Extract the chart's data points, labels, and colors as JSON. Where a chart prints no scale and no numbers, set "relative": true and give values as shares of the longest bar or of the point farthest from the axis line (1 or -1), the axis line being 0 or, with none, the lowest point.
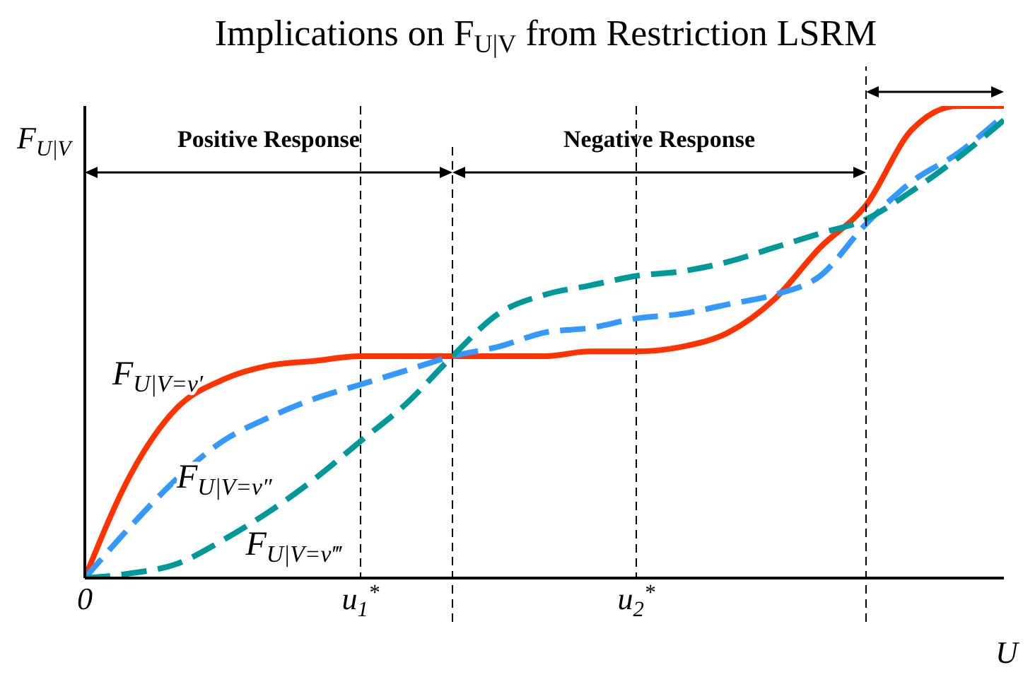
{
  "chart_data": {
    "type": "line",
    "title": "Implications on F$_{U|V}$ from Restriction LSRM",
    "xlabel": "U",
    "ylabel": "F$_{U|V}$",
    "relative": true,
    "categories": [
      "0",
      null,
      null,
      null,
      null,
      null,
      "u$_{1}$$^{*}$",
      null,
      null,
      null,
      null,
      null,
      "u$_{2}$$^{*}$",
      null,
      null,
      null,
      null,
      null,
      null,
      null,
      null
    ],
    "series": [
      {
        "name": "F$_{U|V=v′}$",
        "color": "#ff3300",
        "line_style": "solid",
        "values": [
          0,
          0.22,
          0.36,
          0.42,
          0.45,
          0.46,
          0.47,
          0.47,
          0.47,
          0.47,
          0.47,
          0.48,
          0.48,
          0.49,
          0.52,
          0.59,
          0.7,
          0.79,
          0.95,
          1,
          1
        ]
      },
      {
        "name": "F$_{U|V=v″}$",
        "color": "#3399ff",
        "line_style": "dashed",
        "values": [
          0,
          0.11,
          0.21,
          0.29,
          0.34,
          0.38,
          0.41,
          0.44,
          0.47,
          0.49,
          0.52,
          0.53,
          0.55,
          0.56,
          0.58,
          0.6,
          0.64,
          0.75,
          0.84,
          0.9,
          0.98
        ]
      },
      {
        "name": "F$_{U|V=v‴}$",
        "color": "#009999",
        "line_style": "dashed",
        "values": [
          0,
          0.01,
          0.03,
          0.08,
          0.14,
          0.21,
          0.29,
          0.37,
          0.47,
          0.56,
          0.6,
          0.62,
          0.64,
          0.65,
          0.67,
          0.7,
          0.73,
          0.76,
          0.82,
          0.89,
          0.97
        ]
      }
    ],
    "annotations": [
      "Positive Response",
      "Negative Response"
    ],
    "grid": "x",
    "legend": false
  }
}
